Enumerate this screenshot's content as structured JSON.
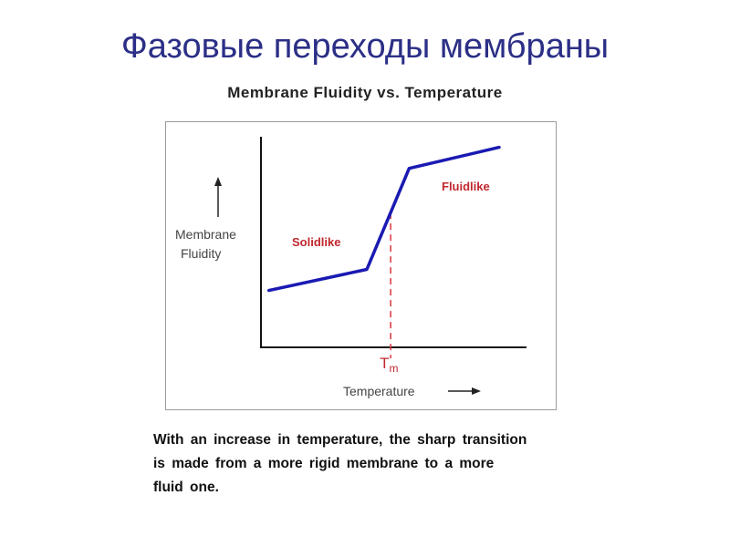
{
  "slide": {
    "title": "Фазовые переходы мембраны"
  },
  "chart_data": {
    "type": "line",
    "title": "Membrane Fluidity vs. Temperature",
    "xlabel": "Temperature",
    "ylabel": [
      "Membrane",
      "Fluidity"
    ],
    "tm_label": "T",
    "tm_subscript": "m",
    "regions": [
      {
        "label": "Solidlike",
        "color": "#c0282d"
      },
      {
        "label": "Fluidlike",
        "color": "#c0282d"
      }
    ],
    "xlim": [
      0,
      100
    ],
    "ylim": [
      0,
      100
    ],
    "series": [
      {
        "color": "#1a1ab3",
        "x": [
          3,
          40,
          56,
          90
        ],
        "y": [
          27,
          37,
          85,
          95
        ]
      }
    ],
    "tm_x": 49,
    "grid": false
  },
  "caption": {
    "lines": [
      "With an increase in temperature, the sharp transition",
      "is made from a more rigid membrane to a more",
      "fluid one."
    ]
  }
}
